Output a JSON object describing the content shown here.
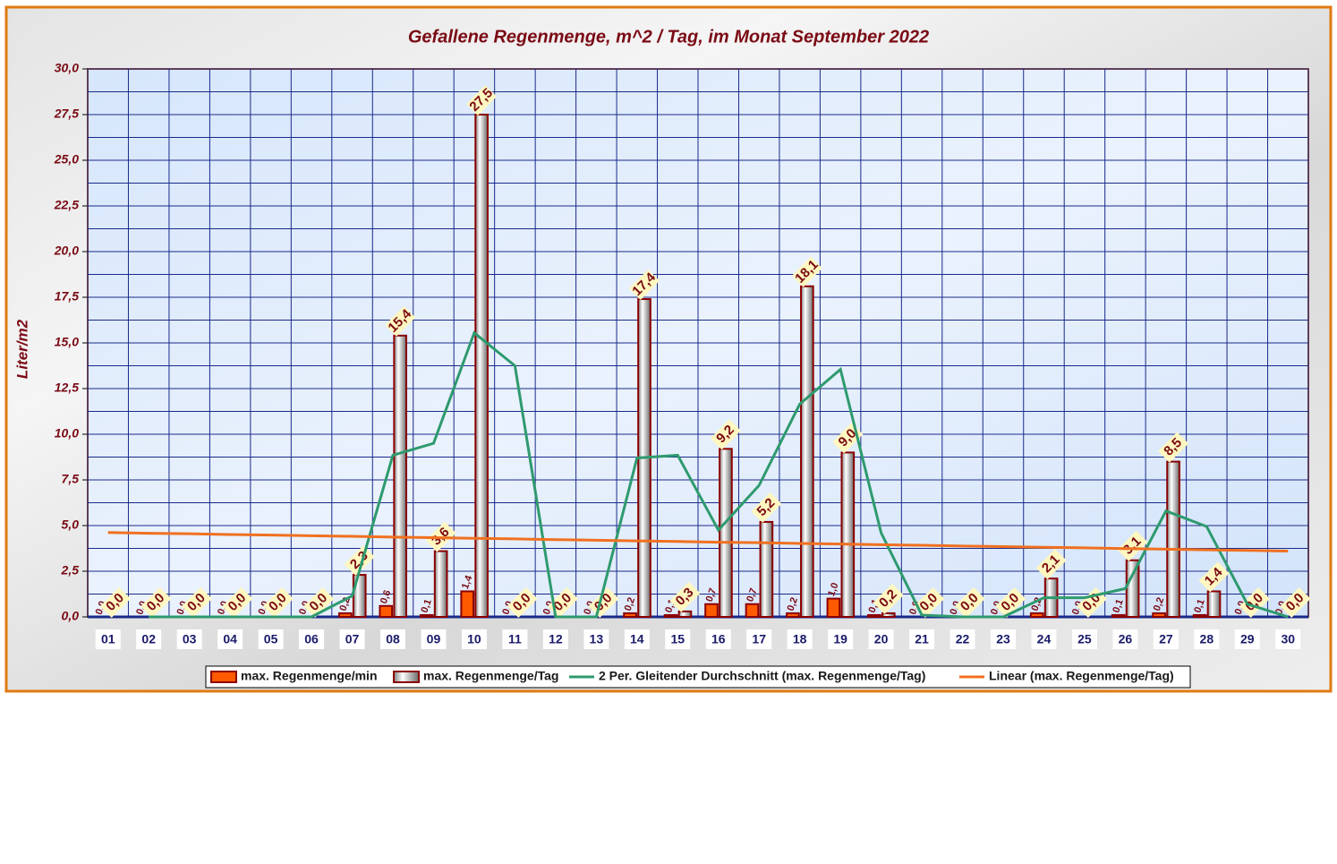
{
  "chart_data": {
    "type": "bar",
    "title": "Gefallene Regenmenge, m^2 / Tag, im Monat September 2022",
    "y_label": "Liter/m2",
    "categories": [
      "01",
      "02",
      "03",
      "04",
      "05",
      "06",
      "07",
      "08",
      "09",
      "10",
      "11",
      "12",
      "13",
      "14",
      "15",
      "16",
      "17",
      "18",
      "19",
      "20",
      "21",
      "22",
      "23",
      "24",
      "25",
      "26",
      "27",
      "28",
      "29",
      "30"
    ],
    "ylim": [
      0,
      30
    ],
    "yticks": [
      {
        "value": 0,
        "label": "0,0"
      },
      {
        "value": 2.5,
        "label": "2,5"
      },
      {
        "value": 5,
        "label": "5,0"
      },
      {
        "value": 7.5,
        "label": "7,5"
      },
      {
        "value": 10,
        "label": "10,0"
      },
      {
        "value": 12.5,
        "label": "12,5"
      },
      {
        "value": 15,
        "label": "15,0"
      },
      {
        "value": 17.5,
        "label": "17,5"
      },
      {
        "value": 20,
        "label": "20,0"
      },
      {
        "value": 22.5,
        "label": "22,5"
      },
      {
        "value": 25,
        "label": "25,0"
      },
      {
        "value": 27.5,
        "label": "27,5"
      },
      {
        "value": 30,
        "label": "30,0"
      }
    ],
    "grid": true,
    "legend": "bottom",
    "series": [
      {
        "name": "max. Regenmenge/min",
        "type": "bar",
        "color": "#ff5a00",
        "values": [
          0,
          0,
          0,
          0,
          0,
          0,
          0.2,
          0.6,
          0.1,
          1.4,
          0,
          0,
          0,
          0.2,
          0.1,
          0.7,
          0.7,
          0.2,
          1.0,
          0.1,
          0,
          0,
          0,
          0.2,
          0,
          0.1,
          0.2,
          0.1,
          0,
          0
        ],
        "value_labels": [
          "0,0",
          "0,0",
          "0,0",
          "0,0",
          "0,0",
          "0,0",
          "0,2",
          "0,6",
          "0,1",
          "1,4",
          "0,0",
          "0,0",
          "0,0",
          "0,2",
          "0,1",
          "0,7",
          "0,7",
          "0,2",
          "1,0",
          "0,1",
          "0,0",
          "0,0",
          "0,0",
          "0,2",
          "0,0",
          "0,1",
          "0,2",
          "0,1",
          "0,0",
          "0,0"
        ]
      },
      {
        "name": "max. Regenmenge/Tag",
        "type": "bar",
        "color": "#8c8c8c",
        "values": [
          0,
          0,
          0,
          0,
          0,
          0,
          2.3,
          15.4,
          3.6,
          27.5,
          0,
          0,
          0,
          17.4,
          0.3,
          9.2,
          5.2,
          18.1,
          9.0,
          0.2,
          0,
          0,
          0,
          2.1,
          0,
          3.1,
          8.5,
          1.4,
          0,
          0
        ],
        "value_labels": [
          "0,0",
          "0,0",
          "0,0",
          "0,0",
          "0,0",
          "0,0",
          "2,3",
          "15,4",
          "3,6",
          "27,5",
          "0,0",
          "0,0",
          "0,0",
          "17,4",
          "0,3",
          "9,2",
          "5,2",
          "18,1",
          "9,0",
          "0,2",
          "0,0",
          "0,0",
          "0,0",
          "2,1",
          "0,0",
          "3,1",
          "8,5",
          "1,4",
          "0,0",
          "0,0"
        ]
      },
      {
        "name": "2 Per. Gleitender Durchschnitt (max. Regenmenge/Tag)",
        "type": "line",
        "color": "#2e9a6e",
        "values": [
          null,
          0,
          0,
          0,
          0,
          0,
          1.15,
          8.85,
          9.5,
          15.55,
          13.75,
          0,
          0,
          8.7,
          8.85,
          4.75,
          7.2,
          11.65,
          13.55,
          4.6,
          0.1,
          0,
          0,
          1.05,
          1.05,
          1.55,
          5.8,
          4.95,
          0.7,
          0
        ]
      },
      {
        "name": "Linear (max. Regenmenge/Tag)",
        "type": "line",
        "color": "#f07020",
        "values": [
          4.62,
          4.58,
          4.55,
          4.51,
          4.48,
          4.44,
          4.41,
          4.37,
          4.34,
          4.3,
          4.27,
          4.23,
          4.2,
          4.16,
          4.13,
          4.09,
          4.06,
          4.02,
          3.99,
          3.95,
          3.92,
          3.88,
          3.85,
          3.81,
          3.78,
          3.74,
          3.71,
          3.67,
          3.64,
          3.6
        ]
      }
    ]
  }
}
